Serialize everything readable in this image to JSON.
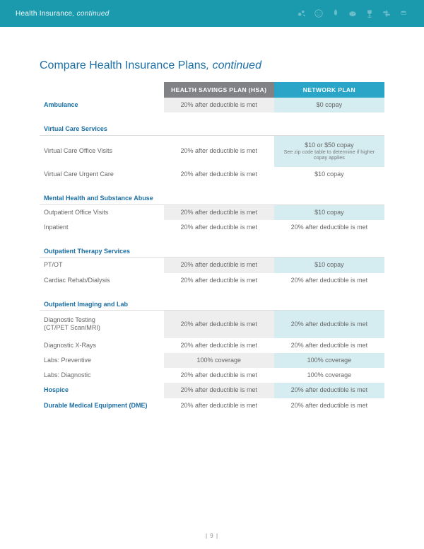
{
  "colors": {
    "banner_bg": "#1b9aae",
    "accent": "#1b6fa6",
    "header_gray": "#808285",
    "header_blue": "#2aa5c8",
    "shade_gray": "#eeeeee",
    "shade_blue": "#d5ecf1"
  },
  "banner": {
    "title": "Health Insurance",
    "suffix": ", continued"
  },
  "page": {
    "title": "Compare Health Insurance Plans",
    "suffix": ", continued",
    "number": "| 9 |"
  },
  "headers": {
    "plan_a": "HEALTH SAVINGS PLAN (HSA)",
    "plan_b": "NETWORK PLAN"
  },
  "rows": [
    {
      "type": "major",
      "label": "Ambulance",
      "a": "20% after deductible is met",
      "b": "$0 copay",
      "shade": true
    },
    {
      "type": "section",
      "label": "Virtual Care Services"
    },
    {
      "type": "row",
      "label": "Virtual Care Office Visits",
      "a": "20% after deductible is met",
      "b": "$10 or $50 copay",
      "b_fine": "See zip code table to determine if higher copay applies",
      "shade_b": true,
      "tall": true
    },
    {
      "type": "row",
      "label": "Virtual Care Urgent Care",
      "a": "20% after deductible is met",
      "b": "$10 copay"
    },
    {
      "type": "section",
      "label": "Mental Health and Substance Abuse"
    },
    {
      "type": "row",
      "label": "Outpatient Office Visits",
      "a": "20% after deductible is met",
      "b": "$10 copay",
      "shade": true
    },
    {
      "type": "row",
      "label": "Inpatient",
      "a": "20% after deductible is met",
      "b": "20% after deductible is met"
    },
    {
      "type": "section",
      "label": "Outpatient Therapy Services"
    },
    {
      "type": "row",
      "label": "PT/OT",
      "a": "20% after deductible is met",
      "b": "$10 copay",
      "shade": true
    },
    {
      "type": "row",
      "label": "Cardiac Rehab/Dialysis",
      "a": "20% after deductible is met",
      "b": "20% after deductible is met"
    },
    {
      "type": "section",
      "label": "Outpatient Imaging and Lab"
    },
    {
      "type": "row",
      "label": "Diagnostic Testing",
      "sub": "(CT/PET Scan/MRI)",
      "a": "20% after deductible is met",
      "b": "20% after deductible is met",
      "shade": true,
      "tall": true
    },
    {
      "type": "row",
      "label": "Diagnostic X-Rays",
      "a": "20% after deductible is met",
      "b": "20% after deductible is met"
    },
    {
      "type": "row",
      "label": "Labs: Preventive",
      "a": "100% coverage",
      "b": "100% coverage",
      "shade": true
    },
    {
      "type": "row",
      "label": "Labs: Diagnostic",
      "a": "20% after deductible is met",
      "b": "100% coverage"
    },
    {
      "type": "major",
      "label": "Hospice",
      "a": "20% after deductible is met",
      "b": "20% after deductible is met",
      "shade": true
    },
    {
      "type": "major",
      "label": "Durable Medical Equipment (DME)",
      "a": "20% after deductible is met",
      "b": "20% after deductible is met"
    }
  ]
}
